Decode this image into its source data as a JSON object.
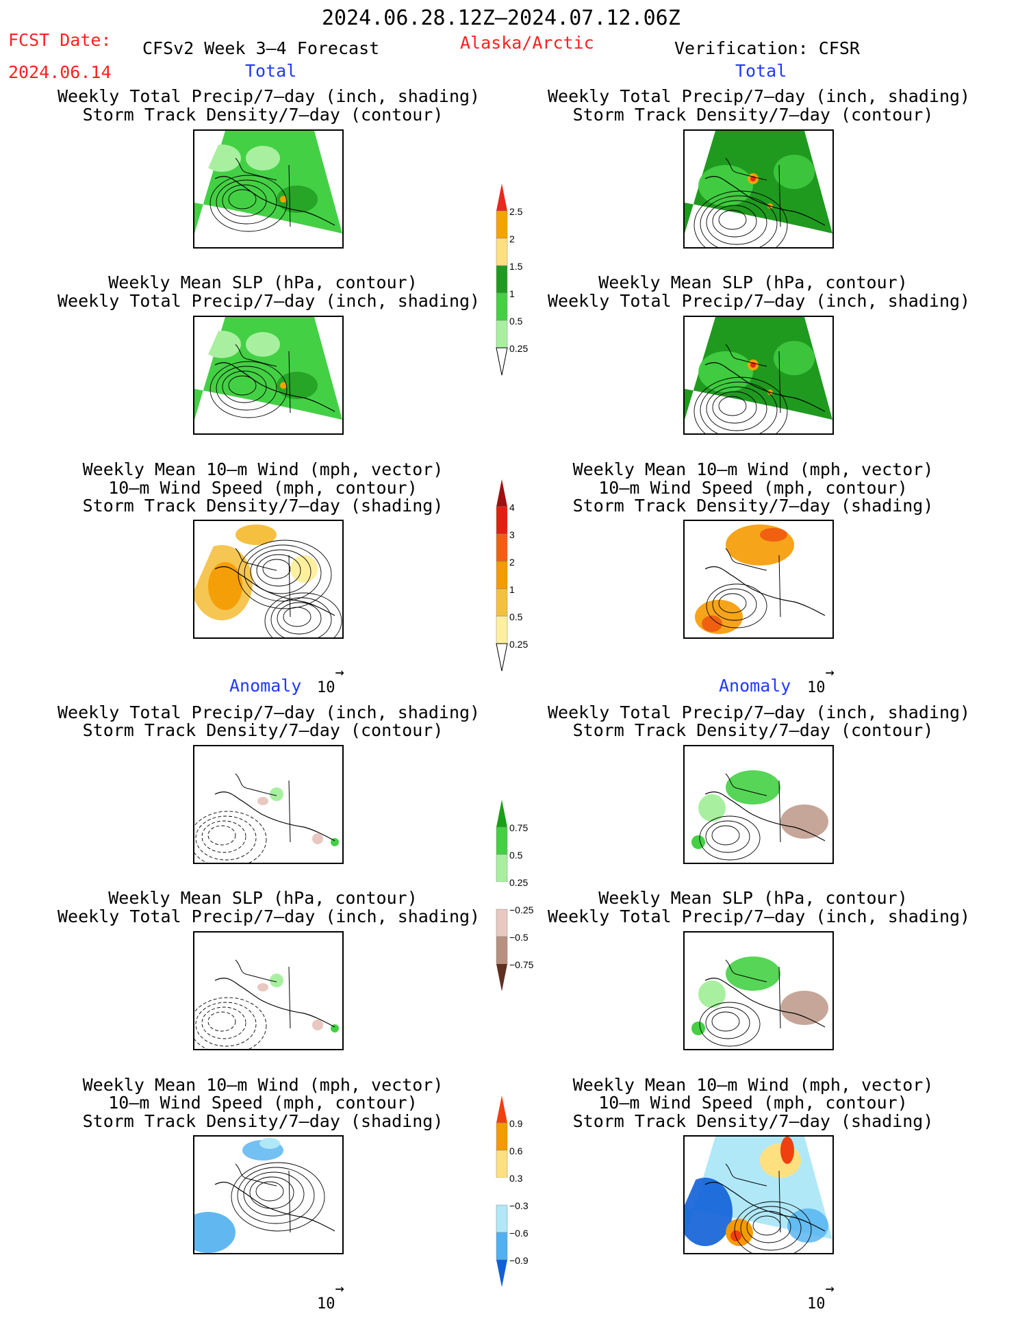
{
  "header": {
    "period": "2024.06.28.12Z–2024.07.12.06Z",
    "fcst_label": "FCST Date:",
    "fcst_date": "2024.06.14",
    "model": "CFSv2 Week 3–4 Forecast",
    "region": "Alaska/Arctic",
    "verification": "Verification: CFSR"
  },
  "sections": {
    "total": "Total",
    "anomaly": "Anomaly"
  },
  "titles": {
    "precip_std": [
      "Weekly Total Precip/7–day (inch, shading)",
      "Storm Track Density/7–day (contour)"
    ],
    "slp_precip": [
      "Weekly Mean SLP (hPa, contour)",
      "Weekly Total Precip/7–day (inch, shading)"
    ],
    "wind": [
      "Weekly Mean 10–m Wind (mph, vector)",
      "10–m Wind Speed (mph, contour)",
      "Storm Track Density/7–day (shading)"
    ]
  },
  "vector_ref": "10",
  "colorbars": {
    "precip_total": {
      "labels": [
        "2.5",
        "2",
        "1.5",
        "1",
        "0.5",
        "0.25"
      ],
      "colors": [
        "#e8281e",
        "#f5a300",
        "#ffe080",
        "#1f9a1f",
        "#44d044",
        "#a8f0a0"
      ]
    },
    "std_total": {
      "labels": [
        "4",
        "3",
        "2",
        "1",
        "0.5",
        "0.25"
      ],
      "colors": [
        "#a01010",
        "#e02010",
        "#f06010",
        "#f59a00",
        "#f5c040",
        "#fff0a0"
      ]
    },
    "precip_anom": {
      "labels": [
        "0.75",
        "0.5",
        "0.25",
        "−0.25",
        "−0.5",
        "−0.75"
      ],
      "colors": [
        "#18a018",
        "#44d044",
        "#a8f0a0",
        "#ffffff",
        "#e8c8c0",
        "#b89080",
        "#906050",
        "#603020"
      ]
    },
    "std_anom": {
      "labels": [
        "0.9",
        "0.6",
        "0.3",
        "−0.3",
        "−0.6",
        "−0.9"
      ],
      "colors": [
        "#f04010",
        "#f59a00",
        "#ffe080",
        "#ffffff",
        "#b0e8f8",
        "#50b0f0",
        "#1060d8"
      ]
    }
  }
}
